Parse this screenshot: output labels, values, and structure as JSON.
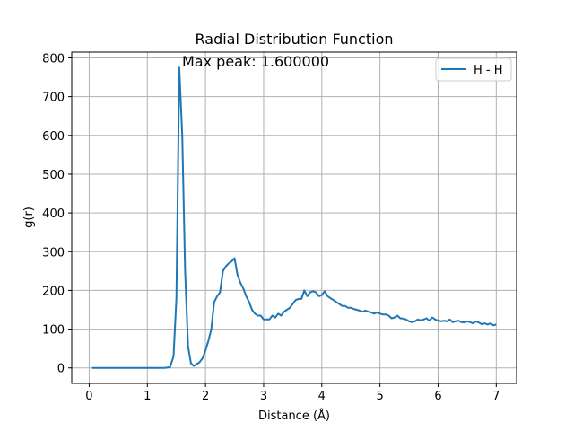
{
  "chart_data": {
    "type": "line",
    "title": "Radial Distribution Function",
    "xlabel": "Distance (Å)",
    "ylabel": "g(r)",
    "annotation": "Max peak: 1.600000",
    "xlim": [
      -0.3,
      7.35
    ],
    "ylim": [
      -40,
      815
    ],
    "xticks": [
      0,
      1,
      2,
      3,
      4,
      5,
      6,
      7
    ],
    "yticks": [
      0,
      100,
      200,
      300,
      400,
      500,
      600,
      700,
      800
    ],
    "grid": true,
    "legend_position": "top-right",
    "series": [
      {
        "name": "H - H",
        "color": "#1f77b4",
        "x": [
          0.05,
          0.2,
          0.4,
          0.6,
          0.8,
          1.0,
          1.2,
          1.3,
          1.39,
          1.45,
          1.5,
          1.55,
          1.6,
          1.65,
          1.7,
          1.75,
          1.8,
          1.85,
          1.9,
          1.95,
          2.0,
          2.05,
          2.1,
          2.15,
          2.2,
          2.25,
          2.3,
          2.35,
          2.4,
          2.45,
          2.5,
          2.55,
          2.6,
          2.65,
          2.7,
          2.75,
          2.8,
          2.85,
          2.9,
          2.95,
          3.0,
          3.05,
          3.1,
          3.15,
          3.2,
          3.25,
          3.3,
          3.35,
          3.4,
          3.45,
          3.5,
          3.55,
          3.6,
          3.65,
          3.7,
          3.75,
          3.8,
          3.85,
          3.9,
          3.95,
          4.0,
          4.05,
          4.1,
          4.15,
          4.2,
          4.25,
          4.3,
          4.35,
          4.4,
          4.45,
          4.5,
          4.55,
          4.6,
          4.65,
          4.7,
          4.75,
          4.8,
          4.85,
          4.9,
          4.95,
          5.0,
          5.05,
          5.1,
          5.15,
          5.2,
          5.25,
          5.3,
          5.35,
          5.4,
          5.45,
          5.5,
          5.55,
          5.6,
          5.65,
          5.7,
          5.75,
          5.8,
          5.85,
          5.9,
          5.95,
          6.0,
          6.05,
          6.1,
          6.15,
          6.2,
          6.25,
          6.3,
          6.35,
          6.4,
          6.45,
          6.5,
          6.55,
          6.6,
          6.65,
          6.7,
          6.75,
          6.8,
          6.85,
          6.9,
          6.95,
          7.0
        ],
        "values": [
          0,
          0,
          0,
          0,
          0,
          0,
          0,
          0,
          2,
          30,
          180,
          775,
          600,
          250,
          55,
          12,
          5,
          10,
          15,
          25,
          45,
          70,
          100,
          170,
          185,
          195,
          250,
          262,
          270,
          275,
          283,
          240,
          220,
          205,
          185,
          170,
          150,
          140,
          135,
          135,
          125,
          125,
          125,
          135,
          130,
          140,
          135,
          145,
          150,
          155,
          165,
          175,
          178,
          178,
          200,
          185,
          195,
          198,
          195,
          185,
          188,
          198,
          185,
          180,
          175,
          170,
          165,
          160,
          160,
          155,
          155,
          152,
          150,
          148,
          145,
          148,
          145,
          143,
          140,
          143,
          140,
          138,
          138,
          135,
          128,
          130,
          135,
          128,
          127,
          125,
          120,
          118,
          120,
          125,
          123,
          125,
          128,
          122,
          130,
          125,
          122,
          120,
          122,
          120,
          125,
          118,
          120,
          122,
          118,
          117,
          120,
          118,
          115,
          120,
          117,
          113,
          115,
          112,
          115,
          110,
          112
        ]
      }
    ]
  }
}
